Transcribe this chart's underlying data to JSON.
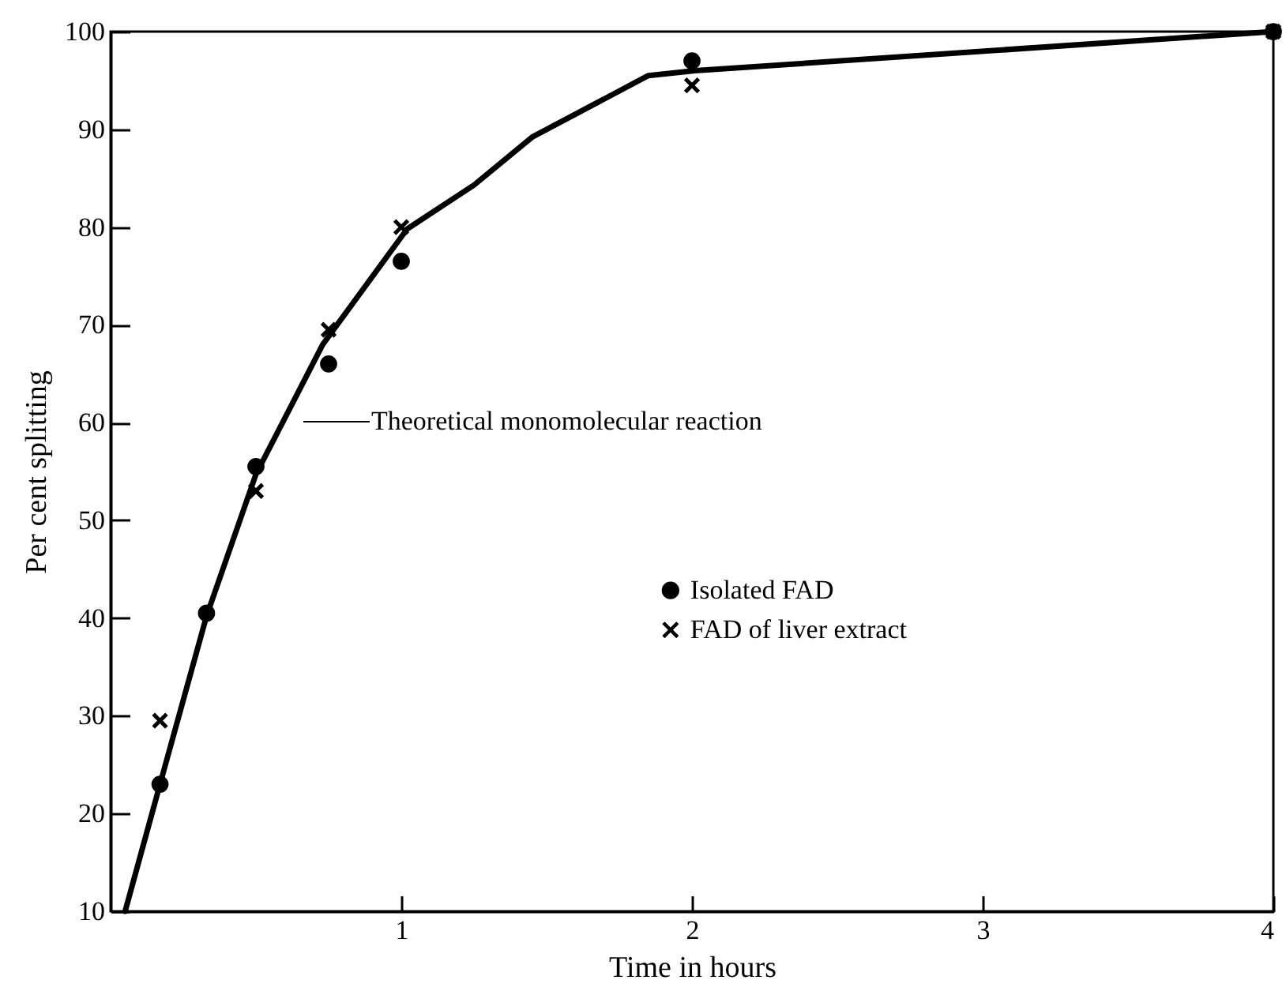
{
  "chart_data": {
    "type": "scatter",
    "xlabel": "Time in hours",
    "ylabel": "Per cent splitting",
    "xlim": [
      0,
      4
    ],
    "xticks": [
      1,
      2,
      3,
      4
    ],
    "ylim": [
      10,
      100
    ],
    "yticks": [
      10,
      20,
      30,
      40,
      50,
      60,
      70,
      80,
      90,
      100
    ],
    "grid": false,
    "legend": "right",
    "series": [
      {
        "name": "Isolated FAD",
        "color": "#000000",
        "marker": "circle",
        "x": [
          0.17,
          0.33,
          0.5,
          0.75,
          1,
          2,
          4
        ],
        "values": [
          23,
          40.5,
          55.5,
          66,
          76.5,
          97,
          100
        ]
      },
      {
        "name": "FAD of liver extract",
        "color": "#000000",
        "marker": "cross",
        "x": [
          0.17,
          0.5,
          0.75,
          1,
          2,
          4
        ],
        "values": [
          29.5,
          53,
          69.5,
          80,
          94.5,
          100
        ]
      },
      {
        "type": "line",
        "color": "#000000",
        "marker": "none",
        "line_style": "solid",
        "x": [
          0.05,
          0.17,
          0.33,
          0.5,
          0.73,
          1.02,
          1.25,
          1.45,
          1.85,
          2.01,
          4
        ],
        "values": [
          10,
          23,
          40.2,
          54.7,
          68,
          79.8,
          84.3,
          89.2,
          95.5,
          96,
          100
        ]
      }
    ],
    "annotations": [
      "Theoretical monomolecular reaction"
    ]
  }
}
